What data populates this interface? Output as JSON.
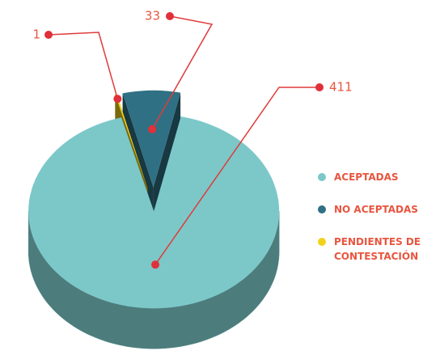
{
  "chart_data": {
    "type": "pie",
    "categories": [
      "ACEPTADAS",
      "NO ACEPTADAS",
      "PENDIENTES DE CONTESTACIÓN"
    ],
    "values": [
      411,
      33,
      1
    ],
    "colors": [
      "#7cc8c9",
      "#2f7084",
      "#f2d31c"
    ],
    "legend": "right"
  }
}
